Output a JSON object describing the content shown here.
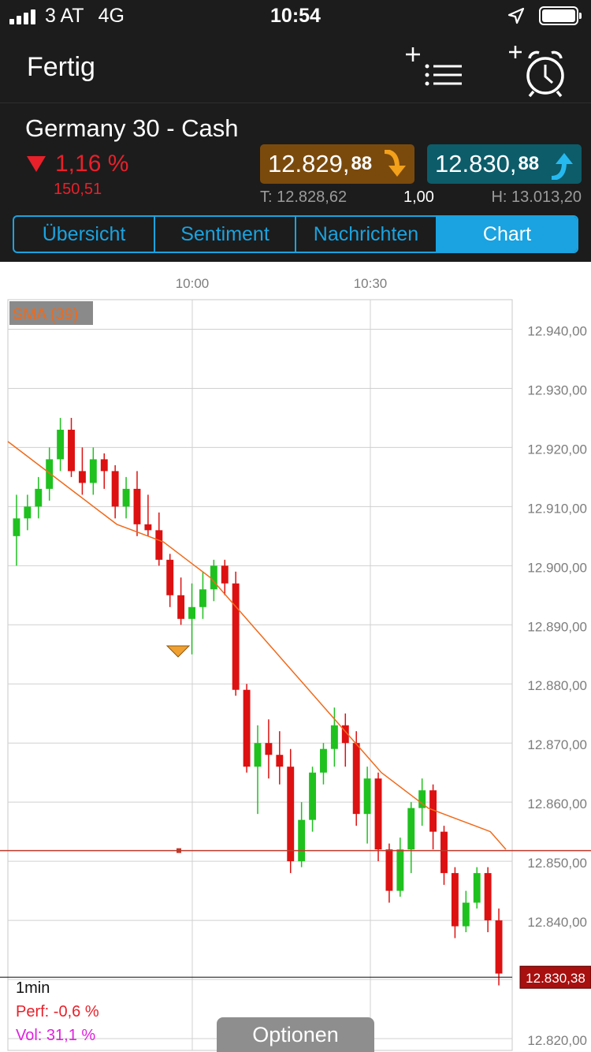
{
  "status_bar": {
    "carrier": "3 AT",
    "network": "4G",
    "time": "10:54"
  },
  "nav": {
    "done_label": "Fertig",
    "add_watchlist_icon": "add-to-list-icon",
    "alarm_icon": "add-alarm-icon"
  },
  "instrument": {
    "name": "Germany 30 - Cash",
    "change_pct": "1,16 %",
    "change_abs": "150,51",
    "sell_price_main": "12.829,",
    "sell_price_small": "88",
    "buy_price_main": "12.830,",
    "buy_price_small": "88",
    "low_label": "T: 12.828,62",
    "lot": "1,00",
    "high_label": "H: 13.013,20"
  },
  "tabs": [
    {
      "label": "Übersicht",
      "active": false
    },
    {
      "label": "Sentiment",
      "active": false
    },
    {
      "label": "Nachrichten",
      "active": false
    },
    {
      "label": "Chart",
      "active": true
    }
  ],
  "colors": {
    "accent": "#1aa3e0",
    "down": "#e8202a",
    "up": "#1fc11f",
    "sma": "#f06a1a",
    "sell_bg": "#7a4a0d",
    "buy_bg": "#0d5c6a"
  },
  "chart_data": {
    "type": "candlestick",
    "timeframe": "1min",
    "x_tick_labels": [
      "10:00",
      "10:30"
    ],
    "y_tick_labels": [
      "12.940,00",
      "12.930,00",
      "12.920,00",
      "12.910,00",
      "12.900,00",
      "12.890,00",
      "12.880,00",
      "12.870,00",
      "12.860,00",
      "12.850,00",
      "12.840,00",
      "12.830,00",
      "12.820,00"
    ],
    "ylim": [
      12818,
      12945
    ],
    "indicator": {
      "label": "SMA (39)",
      "period": 39
    },
    "current_price_label": "12.830,38",
    "current_price": 12830.38,
    "reference_line": 12851.8,
    "perf_label": "Perf: -0,6 %",
    "vol_label": "Vol: 31,1 %",
    "marker_price": 12885.5,
    "sma": [
      12921,
      12919,
      12917,
      12915,
      12913,
      12911,
      12909,
      12907,
      12906,
      12905,
      12904,
      12902,
      12900,
      12898,
      12895,
      12892,
      12889,
      12886,
      12883,
      12880,
      12877,
      12874,
      12871,
      12868,
      12865,
      12863,
      12861,
      12859,
      12858,
      12857,
      12856,
      12855,
      12852
    ],
    "candles": [
      [
        12905,
        12912,
        12900,
        12908
      ],
      [
        12908,
        12912,
        12906,
        12910
      ],
      [
        12910,
        12915,
        12908,
        12913
      ],
      [
        12913,
        12920,
        12911,
        12918
      ],
      [
        12918,
        12925,
        12916,
        12923
      ],
      [
        12923,
        12925,
        12915,
        12916
      ],
      [
        12916,
        12920,
        12912,
        12914
      ],
      [
        12914,
        12920,
        12912,
        12918
      ],
      [
        12918,
        12919,
        12913,
        12916
      ],
      [
        12916,
        12917,
        12908,
        12910
      ],
      [
        12910,
        12915,
        12908,
        12913
      ],
      [
        12913,
        12916,
        12905,
        12907
      ],
      [
        12907,
        12912,
        12905,
        12906
      ],
      [
        12906,
        12909,
        12900,
        12901
      ],
      [
        12901,
        12902,
        12893,
        12895
      ],
      [
        12895,
        12898,
        12890,
        12891
      ],
      [
        12891,
        12897,
        12885,
        12893
      ],
      [
        12893,
        12899,
        12891,
        12896
      ],
      [
        12896,
        12901,
        12894,
        12900
      ],
      [
        12900,
        12901,
        12895,
        12897
      ],
      [
        12897,
        12899,
        12878,
        12879
      ],
      [
        12879,
        12880,
        12865,
        12866
      ],
      [
        12866,
        12873,
        12858,
        12870
      ],
      [
        12870,
        12874,
        12864,
        12868
      ],
      [
        12868,
        12872,
        12863,
        12866
      ],
      [
        12866,
        12869,
        12848,
        12850
      ],
      [
        12850,
        12860,
        12849,
        12857
      ],
      [
        12857,
        12866,
        12855,
        12865
      ],
      [
        12865,
        12870,
        12863,
        12869
      ],
      [
        12869,
        12876,
        12866,
        12873
      ],
      [
        12873,
        12875,
        12866,
        12870
      ],
      [
        12870,
        12872,
        12856,
        12858
      ],
      [
        12858,
        12866,
        12853,
        12864
      ],
      [
        12864,
        12865,
        12850,
        12852
      ],
      [
        12852,
        12853,
        12843,
        12845
      ],
      [
        12845,
        12854,
        12844,
        12852
      ],
      [
        12852,
        12860,
        12848,
        12859
      ],
      [
        12859,
        12864,
        12856,
        12862
      ],
      [
        12862,
        12863,
        12852,
        12855
      ],
      [
        12855,
        12856,
        12846,
        12848
      ],
      [
        12848,
        12849,
        12837,
        12839
      ],
      [
        12839,
        12845,
        12838,
        12843
      ],
      [
        12843,
        12849,
        12842,
        12848
      ],
      [
        12848,
        12849,
        12838,
        12840
      ],
      [
        12840,
        12842,
        12829,
        12831
      ]
    ]
  }
}
